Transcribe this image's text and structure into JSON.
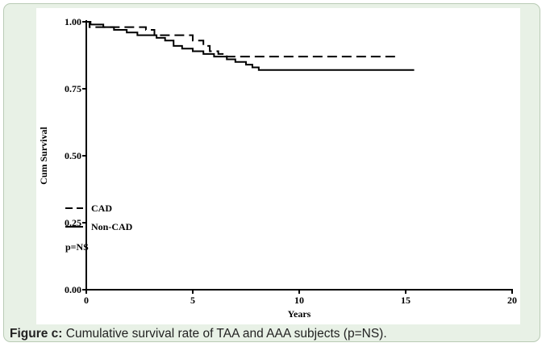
{
  "caption": {
    "label": "Figure c:",
    "text": " Cumulative survival rate of TAA and AAA subjects (p=NS)."
  },
  "colors": {
    "panel_background": "#e8f1e6",
    "plot_background": "#ffffff",
    "ink": "#000000"
  },
  "chart_data": {
    "type": "line",
    "title": "",
    "xlabel": "Years",
    "ylabel": "Cum Survival",
    "xlim": [
      0,
      20
    ],
    "ylim": [
      0,
      1.0
    ],
    "x_ticks": [
      0,
      5,
      10,
      15,
      20
    ],
    "x_tick_labels": [
      "0",
      "5",
      "10",
      "15",
      "20"
    ],
    "y_ticks": [
      0,
      0.25,
      0.5,
      0.75,
      1.0
    ],
    "y_tick_labels": [
      "0.00",
      "0.25",
      "0.50",
      "0.75",
      "1.00"
    ],
    "grid": false,
    "legend_position": "bottom-left",
    "annotation": "p=NS",
    "series": [
      {
        "name": "CAD",
        "line_style": "dashed",
        "step": true,
        "points": [
          [
            0,
            1.0
          ],
          [
            0.15,
            0.98
          ],
          [
            0.3,
            0.98
          ],
          [
            0.9,
            0.98
          ],
          [
            1.0,
            0.98
          ],
          [
            2.5,
            0.98
          ],
          [
            2.8,
            0.97
          ],
          [
            3.2,
            0.95
          ],
          [
            4.8,
            0.95
          ],
          [
            5.0,
            0.93
          ],
          [
            5.5,
            0.91
          ],
          [
            5.8,
            0.89
          ],
          [
            6.2,
            0.88
          ],
          [
            6.6,
            0.87
          ],
          [
            7.0,
            0.87
          ],
          [
            14.6,
            0.87
          ]
        ]
      },
      {
        "name": "Non-CAD",
        "line_style": "solid",
        "step": true,
        "points": [
          [
            0,
            1.0
          ],
          [
            0.2,
            0.99
          ],
          [
            0.8,
            0.98
          ],
          [
            1.3,
            0.97
          ],
          [
            1.9,
            0.96
          ],
          [
            2.4,
            0.95
          ],
          [
            3.3,
            0.94
          ],
          [
            3.7,
            0.93
          ],
          [
            4.1,
            0.91
          ],
          [
            4.5,
            0.9
          ],
          [
            5.0,
            0.89
          ],
          [
            5.5,
            0.88
          ],
          [
            6.0,
            0.87
          ],
          [
            6.6,
            0.86
          ],
          [
            7.0,
            0.85
          ],
          [
            7.5,
            0.84
          ],
          [
            7.8,
            0.83
          ],
          [
            8.1,
            0.82
          ],
          [
            15.4,
            0.82
          ]
        ]
      }
    ]
  }
}
